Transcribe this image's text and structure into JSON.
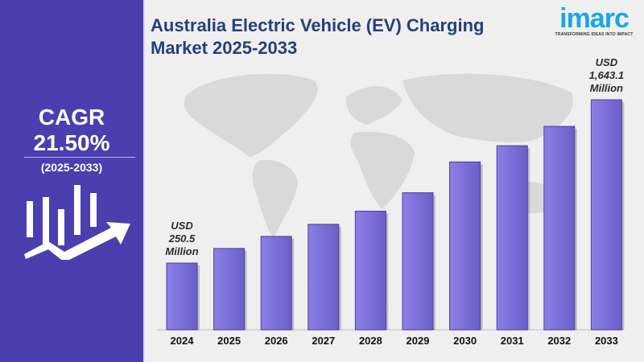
{
  "title": "Australia Electric Vehicle (EV) Charging Market 2025-2033",
  "logo": {
    "word": "imarc",
    "tagline": "TRANSFORMING IDEAS INTO IMPACT"
  },
  "cagr": {
    "label": "CAGR",
    "value": "21.50%",
    "period": "(2025-2033)"
  },
  "colors": {
    "panel": "#4a3fae",
    "bar": "#7b6fd9",
    "title": "#25407a",
    "logo": "#19a6e6"
  },
  "chart_data": {
    "type": "bar",
    "categories": [
      "2024",
      "2025",
      "2026",
      "2027",
      "2028",
      "2029",
      "2030",
      "2031",
      "2032",
      "2033"
    ],
    "values": [
      250.5,
      375,
      478,
      581,
      693,
      850,
      1113,
      1251,
      1416,
      1643.1
    ],
    "annotations": [
      {
        "category": "2024",
        "lines": [
          "USD",
          "250.5",
          "Million"
        ]
      },
      {
        "category": "2033",
        "lines": [
          "USD",
          "1,643.1",
          "Million"
        ]
      }
    ],
    "xlabel": "",
    "ylabel": "",
    "grid": false,
    "legend": "none"
  }
}
